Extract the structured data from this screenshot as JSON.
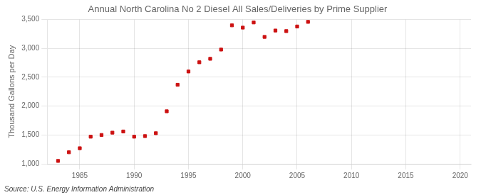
{
  "chart_data": {
    "type": "scatter",
    "title": "Annual North Carolina No 2 Diesel All Sales/Deliveries by Prime Supplier",
    "ylabel": "Thousand Gallons per Day",
    "annotations": [
      "Source: U.S. Energy Information Administration"
    ],
    "x": [
      1983,
      1984,
      1985,
      1986,
      1987,
      1988,
      1989,
      1990,
      1991,
      1992,
      1993,
      1994,
      1995,
      1996,
      1997,
      1998,
      1999,
      2000,
      2001,
      2002,
      2003,
      2004,
      2005,
      2006
    ],
    "values": [
      1050,
      1200,
      1270,
      1470,
      1500,
      1540,
      1560,
      1470,
      1480,
      1530,
      1910,
      2370,
      2600,
      2760,
      2820,
      2980,
      3400,
      3360,
      3450,
      3200,
      3310,
      3300,
      3380,
      3460
    ],
    "color": "#cc1111",
    "marker": "square",
    "line_style": "none",
    "xlim": [
      1982,
      2021
    ],
    "xticks": [
      1985,
      1990,
      1995,
      2000,
      2005,
      2010,
      2015,
      2020
    ],
    "ylim": [
      1000,
      3500
    ],
    "yticks": [
      {
        "value": 1000,
        "label": "1,000"
      },
      {
        "value": 1500,
        "label": "1,500"
      },
      {
        "value": 2000,
        "label": "2,000"
      },
      {
        "value": 2500,
        "label": "2,500"
      },
      {
        "value": 3000,
        "label": "3,000"
      },
      {
        "value": 3500,
        "label": "3,500"
      }
    ],
    "grid": true
  }
}
